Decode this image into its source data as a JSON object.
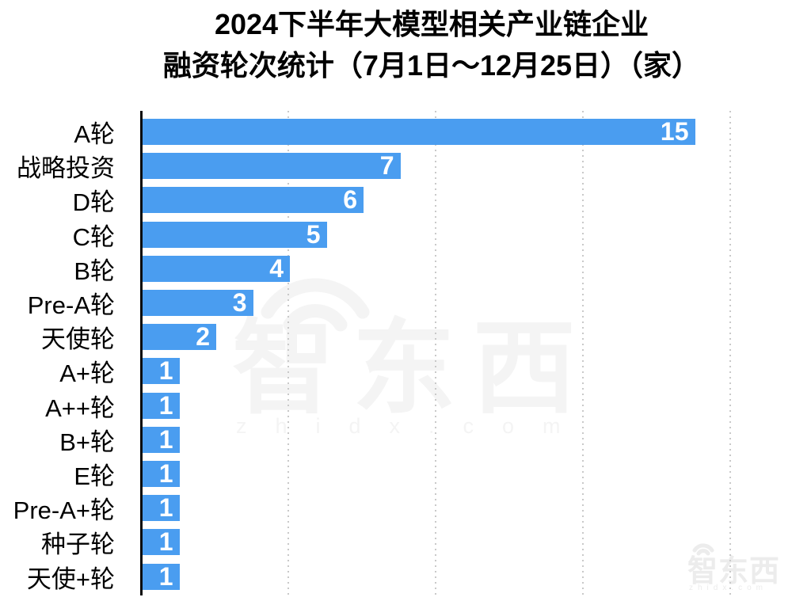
{
  "title": {
    "line1": "2024下半年大模型相关产业链企业",
    "line2": "融资轮次统计（7月1日～12月25日）（家）"
  },
  "chart_data": {
    "type": "bar",
    "orientation": "horizontal",
    "title": "2024下半年大模型相关产业链企业融资轮次统计（7月1日～12月25日）（家）",
    "categories": [
      "A轮",
      "战略投资",
      "D轮",
      "C轮",
      "B轮",
      "Pre-A轮",
      "天使轮",
      "A+轮",
      "A++轮",
      "B+轮",
      "E轮",
      "Pre-A+轮",
      "种子轮",
      "天使+轮"
    ],
    "values": [
      15,
      7,
      6,
      5,
      4,
      3,
      2,
      1,
      1,
      1,
      1,
      1,
      1,
      1
    ],
    "xlim": [
      0,
      16
    ],
    "grid_step": 4,
    "grid": "vertical-dotted",
    "legend": "none",
    "value_labels": "inside-bar-end",
    "bar_color": "#4A9DF0",
    "value_label_color": "#FFFFFF"
  },
  "watermark": {
    "center_logo_text": "智东西",
    "center_domain": "zhidx.com",
    "corner_logo_text": "智东西",
    "corner_domain": "zhidx.com",
    "color": "#F4F4F4"
  },
  "colors": {
    "background": "#FFFFFF",
    "axis": "#0A0A0A",
    "gridline": "#C9C9C9",
    "text": "#000000"
  }
}
